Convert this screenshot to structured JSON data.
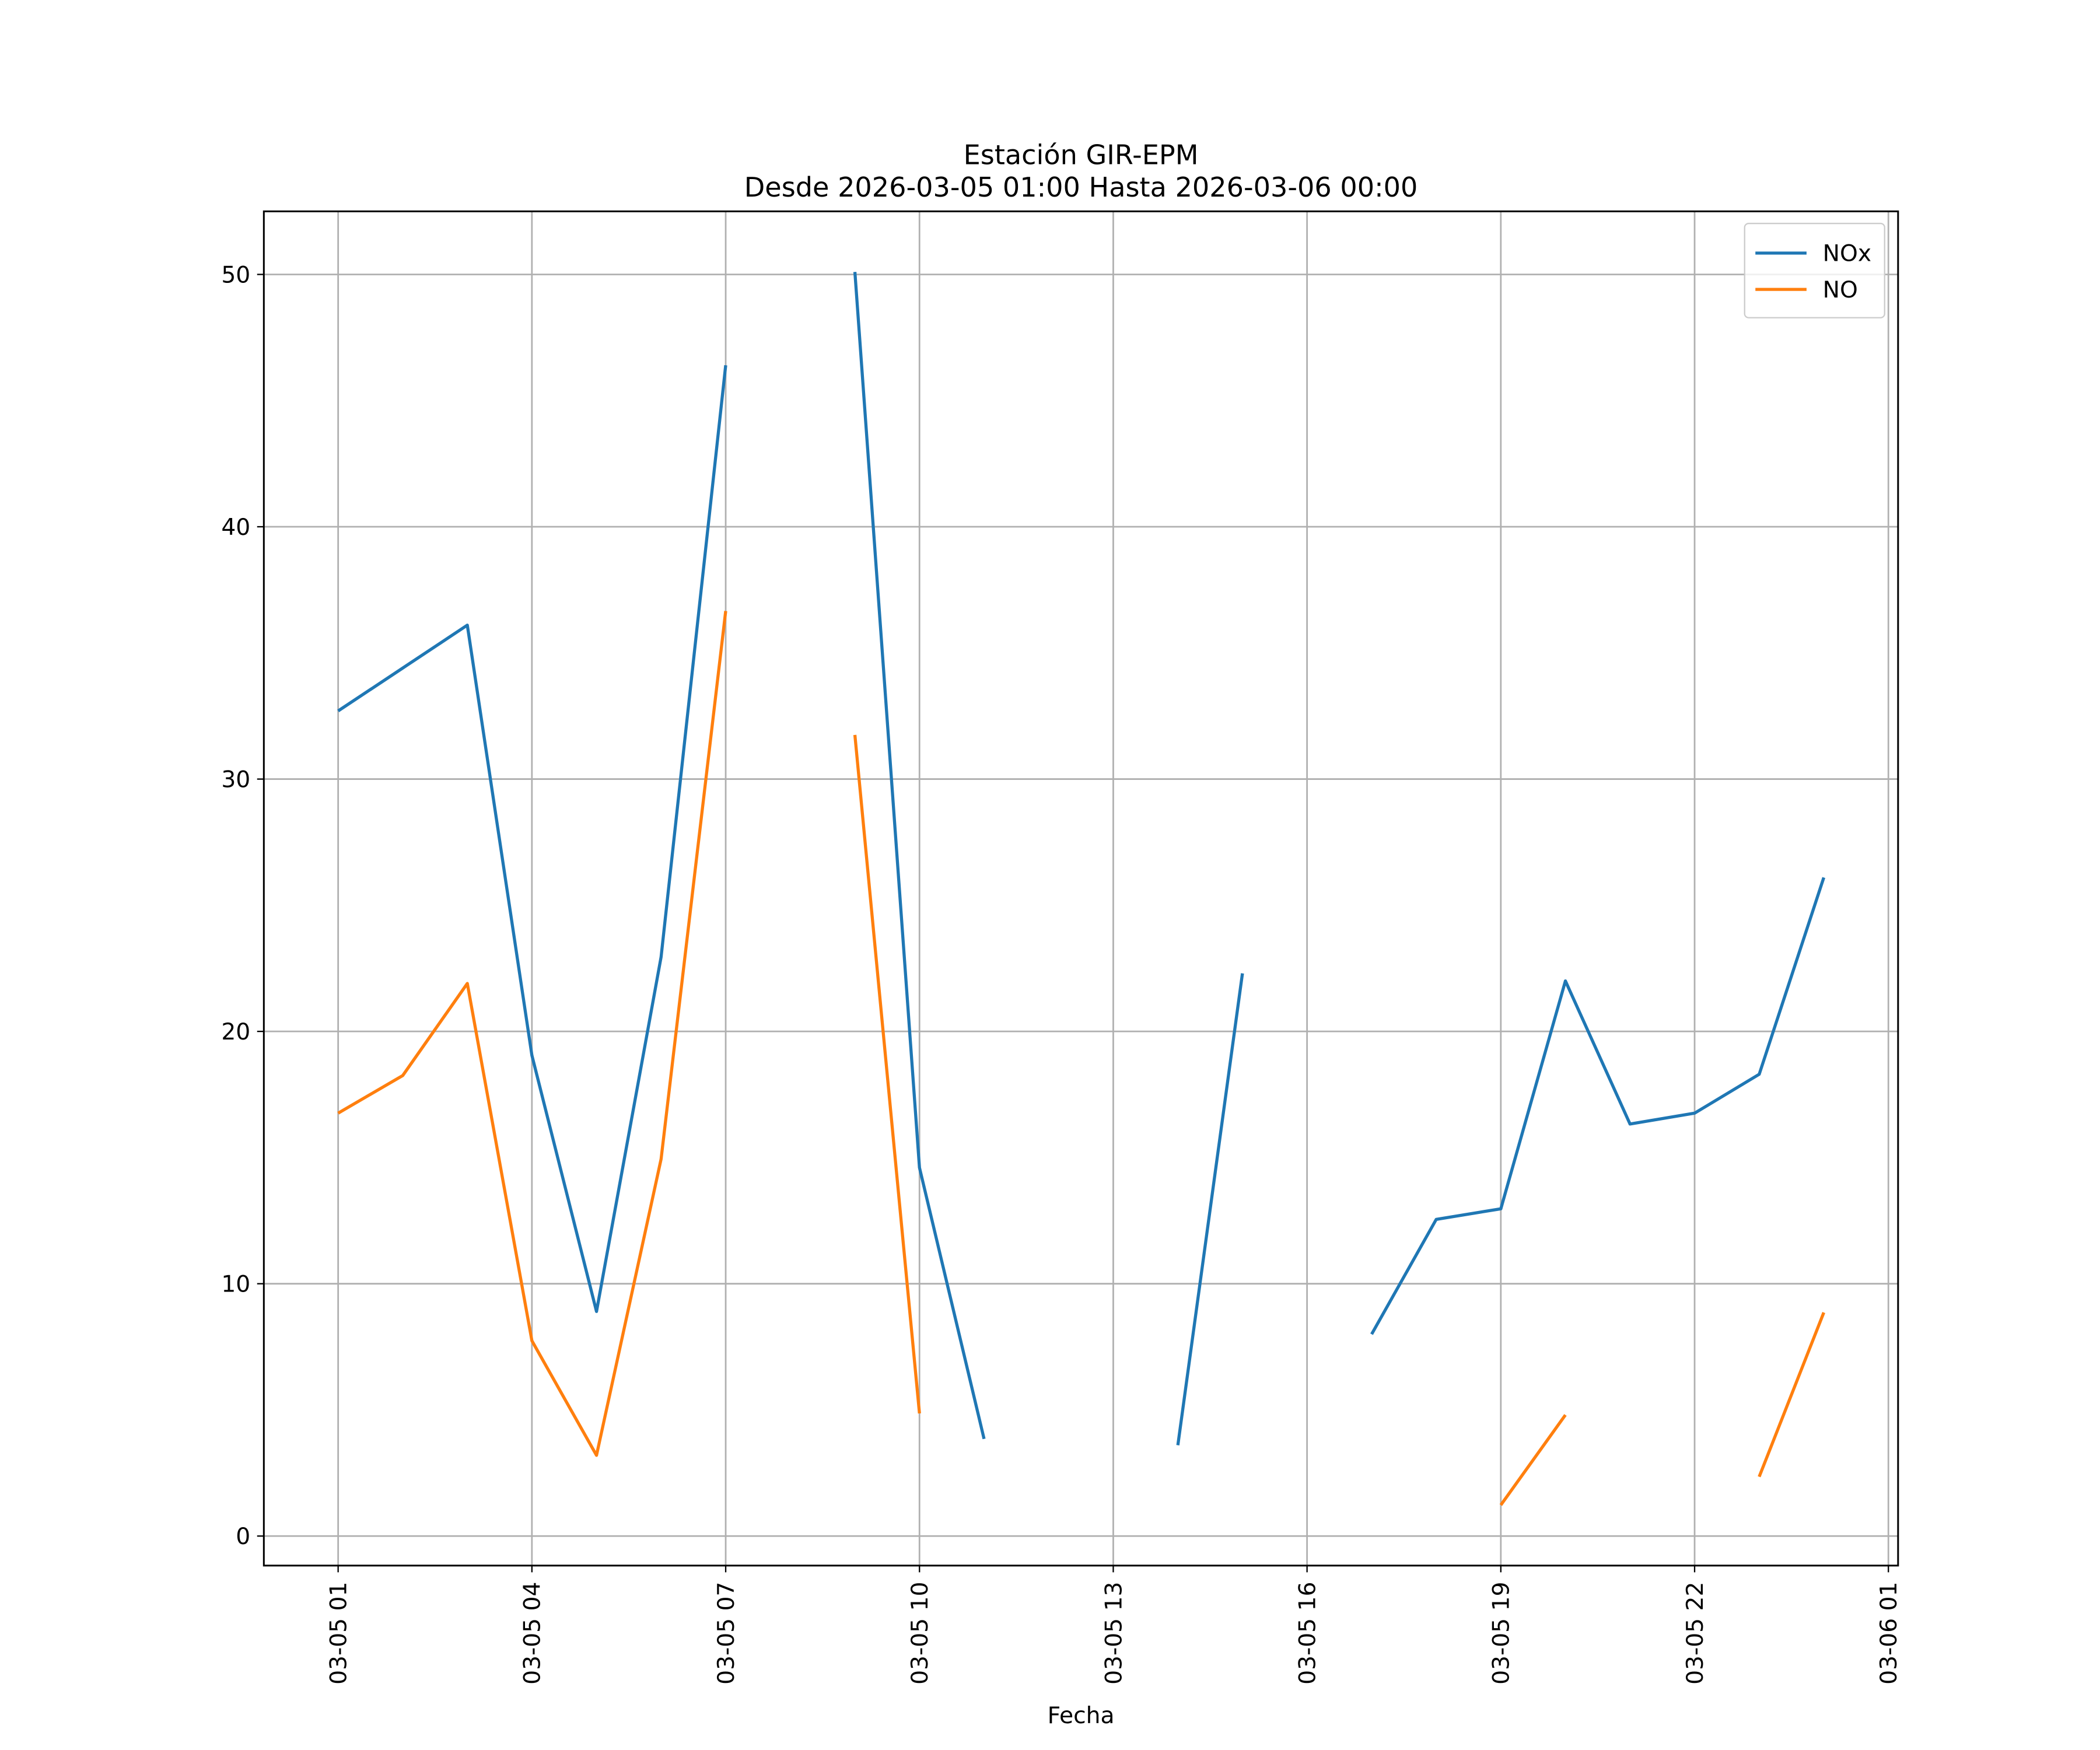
{
  "chart_data": {
    "type": "line",
    "title": "Estación GIR-EPM",
    "subtitle": "Desde 2026-03-05 01:00 Hasta 2026-03-06 00:00",
    "x_label": "Fecha",
    "x": [
      "2026-03-05 01:00",
      "2026-03-05 02:00",
      "2026-03-05 03:00",
      "2026-03-05 04:00",
      "2026-03-05 05:00",
      "2026-03-05 06:00",
      "2026-03-05 07:00",
      "2026-03-05 08:00",
      "2026-03-05 09:00",
      "2026-03-05 10:00",
      "2026-03-05 11:00",
      "2026-03-05 12:00",
      "2026-03-05 13:00",
      "2026-03-05 14:00",
      "2026-03-05 15:00",
      "2026-03-05 16:00",
      "2026-03-05 17:00",
      "2026-03-05 18:00",
      "2026-03-05 19:00",
      "2026-03-05 20:00",
      "2026-03-05 21:00",
      "2026-03-05 22:00",
      "2026-03-05 23:00",
      "2026-03-06 00:00"
    ],
    "series": [
      {
        "name": "NOx",
        "color": "#1f77b4",
        "values": [
          32.7,
          34.4,
          36.1,
          19.05,
          8.9,
          22.95,
          46.4,
          null,
          50.1,
          14.6,
          3.85,
          null,
          null,
          3.6,
          22.3,
          null,
          8.0,
          12.55,
          12.97,
          22.0,
          16.33,
          16.76,
          18.3,
          26.1
        ]
      },
      {
        "name": "NO",
        "color": "#ff7f0e",
        "values": [
          16.76,
          18.25,
          21.9,
          7.74,
          3.2,
          14.94,
          36.66,
          null,
          31.75,
          4.86,
          null,
          null,
          null,
          null,
          null,
          null,
          null,
          null,
          1.23,
          4.8,
          null,
          null,
          2.35,
          8.86
        ]
      }
    ],
    "xlim": [
      "2026-03-04 23:51",
      "2026-03-06 01:09"
    ],
    "xticks": [
      {
        "value": "2026-03-05 01:00",
        "label": "03-05 01"
      },
      {
        "value": "2026-03-05 04:00",
        "label": "03-05 04"
      },
      {
        "value": "2026-03-05 07:00",
        "label": "03-05 07"
      },
      {
        "value": "2026-03-05 10:00",
        "label": "03-05 10"
      },
      {
        "value": "2026-03-05 13:00",
        "label": "03-05 13"
      },
      {
        "value": "2026-03-05 16:00",
        "label": "03-05 16"
      },
      {
        "value": "2026-03-05 19:00",
        "label": "03-05 19"
      },
      {
        "value": "2026-03-05 22:00",
        "label": "03-05 22"
      },
      {
        "value": "2026-03-06 01:00",
        "label": "03-06 01"
      }
    ],
    "ylim": [
      -1.17,
      52.5
    ],
    "yticks": [
      0,
      10,
      20,
      30,
      40,
      50
    ],
    "grid": true,
    "legend": "upper right"
  }
}
